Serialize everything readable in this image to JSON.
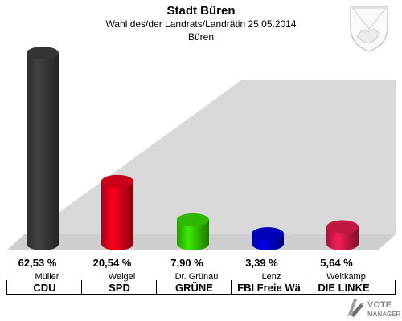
{
  "header": {
    "title": "Stadt Büren",
    "subtitle": "Wahl des/der Landrats/Landrätin 25.05.2014",
    "place": "Büren"
  },
  "logo": {
    "line1": "VOTE",
    "line2": "MANAGER"
  },
  "colors": {
    "background_shadow": "#d9d9d9",
    "floor": "#cfcfcf"
  },
  "chart_data": {
    "type": "bar",
    "title": "Stadt Büren",
    "categories": [
      "CDU",
      "SPD",
      "GRÜNE",
      "FBI Freie Wä",
      "DIE LINKE"
    ],
    "candidates": [
      "Müller",
      "Weigel",
      "Dr. Grünau",
      "Lenz",
      "Weitkamp"
    ],
    "values": [
      62.53,
      20.54,
      7.9,
      3.39,
      5.64
    ],
    "labels": [
      "62,53 %",
      "20,54 %",
      "7,90 %",
      "3,39 %",
      "5,64 %"
    ],
    "colors": [
      "#3a3a3a",
      "#e0001b",
      "#33cc00",
      "#0000cc",
      "#d6194a"
    ],
    "ylim": [
      0,
      62.53
    ],
    "legend": "none",
    "grid": false
  },
  "bars": [
    {
      "candidate": "Müller",
      "party": "CDU",
      "label": "62,53 %"
    },
    {
      "candidate": "Weigel",
      "party": "SPD",
      "label": "20,54 %"
    },
    {
      "candidate": "Dr. Grünau",
      "party": "GRÜNE",
      "label": "7,90 %"
    },
    {
      "candidate": "Lenz",
      "party": "FBI Freie Wä",
      "label": "3,39 %"
    },
    {
      "candidate": "Weitkamp",
      "party": "DIE LINKE",
      "label": "5,64 %"
    }
  ]
}
